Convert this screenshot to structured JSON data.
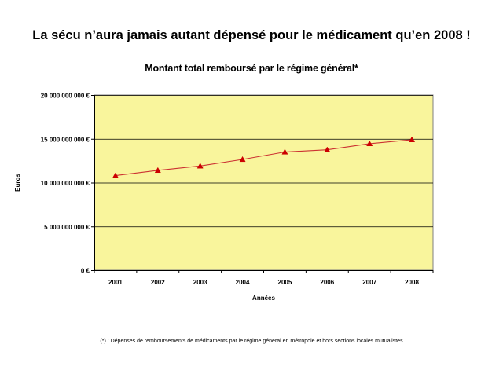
{
  "page_title": "La sécu n’aura jamais autant dépensé pour le médicament qu’en 2008 !",
  "footnote": "(*) : Dépenses de remboursements de médicaments par le régime général en métropole et hors sections locales mutualistes",
  "colors": {
    "plot_background": "#f9f59c",
    "series_line": "#cc3333",
    "series_marker": "#cc0000",
    "gridline": "#000000"
  },
  "chart_data": {
    "type": "line",
    "title": "Montant total remboursé par le régime général*",
    "xlabel": "Années",
    "ylabel": "Euros",
    "categories": [
      "2001",
      "2002",
      "2003",
      "2004",
      "2005",
      "2006",
      "2007",
      "2008"
    ],
    "series": [
      {
        "values": [
          10800000000,
          11400000000,
          11900000000,
          12650000000,
          13500000000,
          13750000000,
          14450000000,
          14900000000
        ]
      }
    ],
    "ylim": [
      0,
      20000000000
    ],
    "yticks": [
      0,
      5000000000,
      10000000000,
      15000000000,
      20000000000
    ],
    "ytick_labels": [
      "0 €",
      "5 000 000 000 €",
      "10 000 000 000 €",
      "15 000 000 000 €",
      "20 000 000 000 €"
    ],
    "grid": true,
    "legend": "none",
    "marker": "triangle"
  }
}
